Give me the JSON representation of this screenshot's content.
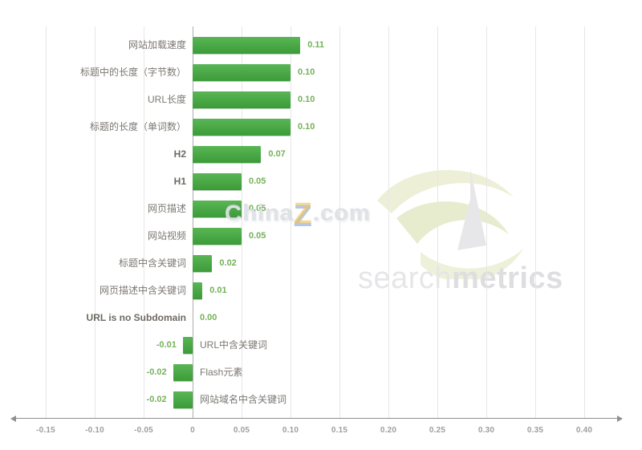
{
  "chart_data": {
    "type": "bar",
    "orientation": "horizontal",
    "title": "",
    "xlabel": "",
    "ylabel": "",
    "legend": false,
    "grid": true,
    "xlim": [
      -0.18,
      0.435
    ],
    "categories": [
      "网站加载速度",
      "标题中的长度（字节数）",
      "URL长度",
      "标题的长度（单词数）",
      "H2",
      "H1",
      "网页描述",
      "网站视频",
      "标题中含关键词",
      "网页描述中含关键词",
      "URL is no Subdomain",
      "URL中含关键词",
      "Flash元素",
      "网站域名中含关键词"
    ],
    "values": [
      0.11,
      0.1,
      0.1,
      0.1,
      0.07,
      0.05,
      0.05,
      0.05,
      0.02,
      0.01,
      0.0,
      -0.01,
      -0.02,
      -0.02
    ],
    "value_labels": [
      "0.11",
      "0.10",
      "0.10",
      "0.10",
      "0.07",
      "0.05",
      "0.05",
      "0.05",
      "0.02",
      "0.01",
      "0.00",
      "-0.01",
      "-0.02",
      "-0.02"
    ],
    "bold_indices": [
      4,
      5,
      10
    ],
    "x_ticks": [
      -0.15,
      -0.1,
      -0.05,
      0,
      0.05,
      0.1,
      0.15,
      0.2,
      0.25,
      0.3,
      0.35,
      0.4
    ],
    "x_tick_labels": [
      "-0.15",
      "-0.10",
      "-0.05",
      "0",
      "0.05",
      "0.10",
      "0.15",
      "0.20",
      "0.25",
      "0.30",
      "0.35",
      "0.40"
    ],
    "bar_color": "#48a844",
    "value_color": "#74b159",
    "gridline_color": "#e7e7e7",
    "zero_line_color": "#adadad"
  },
  "watermarks": {
    "chinaz_part1": "China",
    "chinaz_part2": "Z",
    "chinaz_part3": ".com",
    "logo_light": "search",
    "logo_bold": "metrics"
  }
}
